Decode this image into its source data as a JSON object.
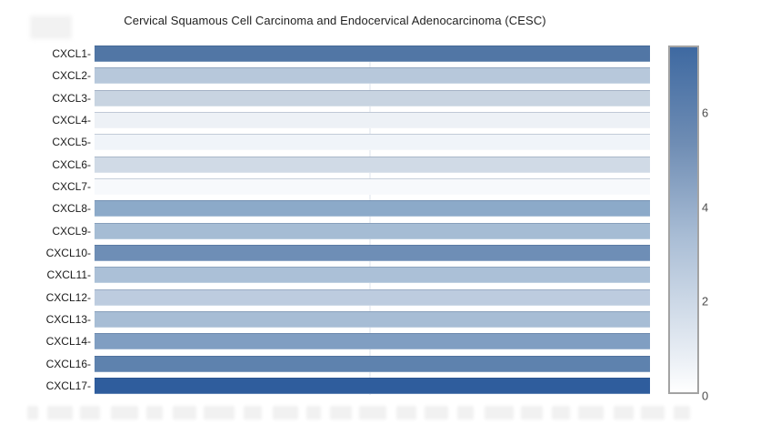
{
  "title": "Cervical Squamous Cell Carcinoma and Endocervical Adenocarcinoma (CESC)",
  "chart_data": {
    "type": "heatmap",
    "orientation": "horizontal-rows",
    "title": "Cervical Squamous Cell Carcinoma and Endocervical Adenocarcinoma (CESC)",
    "categories": [
      "CXCL1",
      "CXCL2",
      "CXCL3",
      "CXCL4",
      "CXCL5",
      "CXCL6",
      "CXCL7",
      "CXCL8",
      "CXCL9",
      "CXCL10",
      "CXCL11",
      "CXCL12",
      "CXCL13",
      "CXCL14",
      "CXCL16",
      "CXCL17"
    ],
    "row_labels": [
      "CXCL1-",
      "CXCL2-",
      "CXCL3-",
      "CXCL4-",
      "CXCL5-",
      "CXCL6-",
      "CXCL7-",
      "CXCL8-",
      "CXCL9-",
      "CXCL10-",
      "CXCL11-",
      "CXCL12-",
      "CXCL13-",
      "CXCL14-",
      "CXCL16-",
      "CXCL17-"
    ],
    "values": [
      6.7,
      2.9,
      2.2,
      0.7,
      0.6,
      1.9,
      0.3,
      4.6,
      3.6,
      5.6,
      3.3,
      2.6,
      3.4,
      4.9,
      6.3,
      7.4
    ],
    "row_colors": [
      "#5176a5",
      "#b7c8db",
      "#c8d4e1",
      "#edf1f6",
      "#f0f4f9",
      "#d0dae6",
      "#f7f9fc",
      "#8caac9",
      "#a5bcd4",
      "#6e8eb6",
      "#abc0d7",
      "#bdccdf",
      "#a7bdd5",
      "#809ec2",
      "#5e82ae",
      "#2f5d9d"
    ],
    "value_encoding": "color intensity encodes expression level",
    "colorbar": {
      "min": 0,
      "max": 7.4,
      "tick_values": [
        0,
        2,
        4,
        6
      ],
      "tick_labels": [
        "0",
        "2",
        "4",
        "6"
      ],
      "gradient_bottom": "#ffffff",
      "gradient_top": "#3e69a1",
      "border_color": "#a3a3a3"
    },
    "grid": "single faint vertical gridline at plot midpoint",
    "legend_position": "right colorbar",
    "plot_bg": "#ffffff"
  }
}
